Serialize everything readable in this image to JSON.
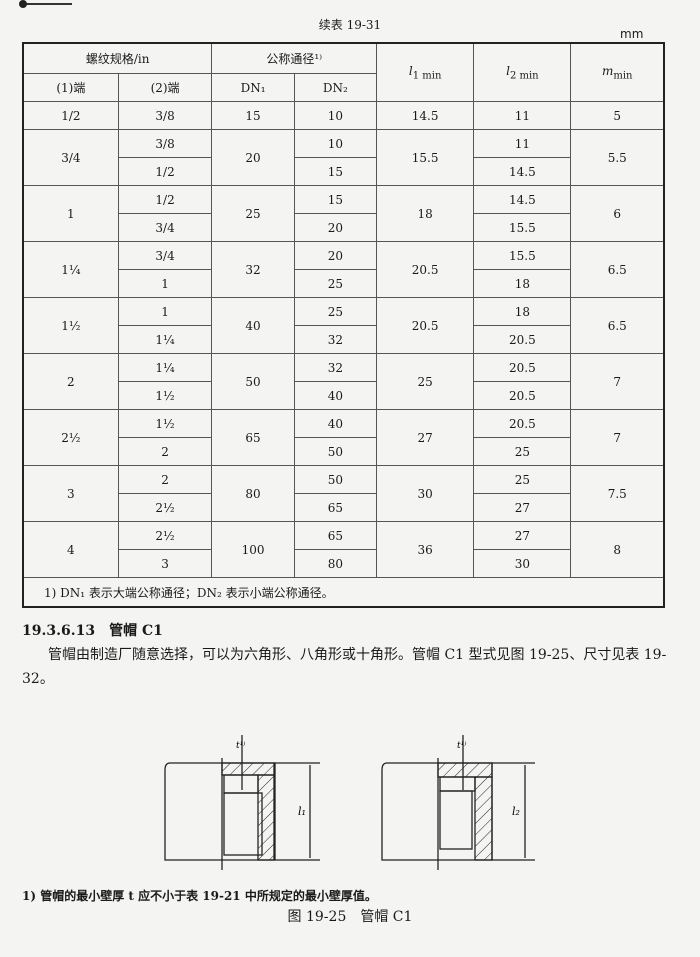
{
  "caption": "续表 19-31",
  "unit": "mm",
  "header": {
    "thread": "螺纹规格/in",
    "nominal": "公称通径¹⁾",
    "end1": "(1)端",
    "end2": "(2)端",
    "dn1": "DN₁",
    "dn2": "DN₂",
    "l1": "l₁ min",
    "l2": "l₂ min",
    "m": "m_min"
  },
  "rows": [
    {
      "e1": "1/2",
      "dn1": "15",
      "l1": "14.5",
      "m": "5",
      "sub": [
        {
          "e2": "3/8",
          "dn2": "10",
          "l2": "11"
        }
      ]
    },
    {
      "e1": "3/4",
      "dn1": "20",
      "l1": "15.5",
      "m": "5.5",
      "sub": [
        {
          "e2": "3/8",
          "dn2": "10",
          "l2": "11"
        },
        {
          "e2": "1/2",
          "dn2": "15",
          "l2": "14.5"
        }
      ]
    },
    {
      "e1": "1",
      "dn1": "25",
      "l1": "18",
      "m": "6",
      "sub": [
        {
          "e2": "1/2",
          "dn2": "15",
          "l2": "14.5"
        },
        {
          "e2": "3/4",
          "dn2": "20",
          "l2": "15.5"
        }
      ]
    },
    {
      "e1": "1¼",
      "dn1": "32",
      "l1": "20.5",
      "m": "6.5",
      "sub": [
        {
          "e2": "3/4",
          "dn2": "20",
          "l2": "15.5"
        },
        {
          "e2": "1",
          "dn2": "25",
          "l2": "18"
        }
      ]
    },
    {
      "e1": "1½",
      "dn1": "40",
      "l1": "20.5",
      "m": "6.5",
      "sub": [
        {
          "e2": "1",
          "dn2": "25",
          "l2": "18"
        },
        {
          "e2": "1¼",
          "dn2": "32",
          "l2": "20.5"
        }
      ]
    },
    {
      "e1": "2",
      "dn1": "50",
      "l1": "25",
      "m": "7",
      "sub": [
        {
          "e2": "1¼",
          "dn2": "32",
          "l2": "20.5"
        },
        {
          "e2": "1½",
          "dn2": "40",
          "l2": "20.5"
        }
      ]
    },
    {
      "e1": "2½",
      "dn1": "65",
      "l1": "27",
      "m": "7",
      "sub": [
        {
          "e2": "1½",
          "dn2": "40",
          "l2": "20.5"
        },
        {
          "e2": "2",
          "dn2": "50",
          "l2": "25"
        }
      ]
    },
    {
      "e1": "3",
      "dn1": "80",
      "l1": "30",
      "m": "7.5",
      "sub": [
        {
          "e2": "2",
          "dn2": "50",
          "l2": "25"
        },
        {
          "e2": "2½",
          "dn2": "65",
          "l2": "27"
        }
      ]
    },
    {
      "e1": "4",
      "dn1": "100",
      "l1": "36",
      "m": "8",
      "sub": [
        {
          "e2": "2½",
          "dn2": "65",
          "l2": "27"
        },
        {
          "e2": "3",
          "dn2": "80",
          "l2": "30"
        }
      ]
    }
  ],
  "table_footnote": "1) DN₁ 表示大端公称通径；DN₂ 表示小端公称通径。",
  "section_title": "19.3.6.13　管帽 C1",
  "paragraph": "管帽由制造厂随意选择，可以为六角形、八角形或十角形。管帽 C1 型式见图 19-25、尺寸见表 19-32。",
  "figure": {
    "label_t": "t¹⁾",
    "label_l1": "l₁",
    "label_l2": "l₂"
  },
  "figure_note": "1) 管帽的最小壁厚 t 应不小于表 19-21 中所规定的最小壁厚值。",
  "figure_caption": "图 19-25　管帽 C1"
}
